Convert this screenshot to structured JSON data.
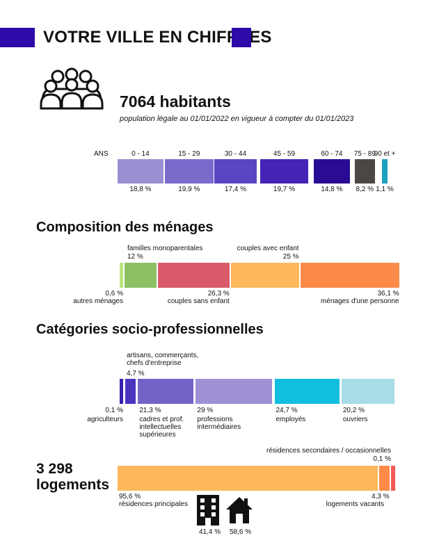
{
  "header": {
    "title": "VOTRE VILLE EN CHIFFRES",
    "accent": "#2e0aa8"
  },
  "population": {
    "icon": "people-group-icon",
    "count_label": "7064 habitants",
    "subtitle": "population légale au 01/01/2022 en vigueur à compter du 01/01/2023"
  },
  "chart_data": [
    {
      "type": "bar",
      "id": "ages",
      "title": "",
      "axis_label": "ANS",
      "categories": [
        "0 - 14",
        "15 - 29",
        "30 - 44",
        "45 - 59",
        "60 - 74",
        "75 - 89",
        "90 et +"
      ],
      "values": [
        18.8,
        19.9,
        17.4,
        19.7,
        14.8,
        8.2,
        1.1
      ],
      "value_labels": [
        "18,8 %",
        "19,9 %",
        "17,4 %",
        "19,7 %",
        "14,8 %",
        "8,2 %",
        "1,1 %"
      ],
      "colors": [
        "#9a8fd2",
        "#7a6acb",
        "#5a45c2",
        "#4324b4",
        "#2a0c94",
        "#4b4844",
        "#1da2bd"
      ]
    },
    {
      "type": "bar",
      "id": "menages",
      "title": "Composition des ménages",
      "categories": [
        "autres ménages",
        "familles monoparentales",
        "couples sans enfant",
        "couples avec enfant",
        "ménages d'une personne"
      ],
      "values": [
        0.6,
        12,
        26.3,
        25,
        36.1
      ],
      "value_labels": [
        "0,6 %",
        "12 %",
        "26,3 %",
        "25 %",
        "36,1 %"
      ],
      "colors": [
        "#b7e77c",
        "#8dbf63",
        "#d95b6a",
        "#fcb85a",
        "#fc8b4a"
      ]
    },
    {
      "type": "bar",
      "id": "csp",
      "title": "Catégories socio-professionnelles",
      "categories": [
        "agriculteurs",
        "artisans, commerçants, chefs d'entreprise",
        "cadres et prof. intellectuelles supérieures",
        "professions intermédiaires",
        "employés",
        "ouvriers"
      ],
      "values": [
        0.1,
        4.7,
        21.3,
        29,
        24.7,
        20.2
      ],
      "value_labels": [
        "0,1 %",
        "4,7 %",
        "21,3 %",
        "29 %",
        "24,7 %",
        "20,2 %"
      ],
      "colors": [
        "#3a1fb0",
        "#4a34bf",
        "#7363c6",
        "#9f90d6",
        "#11bedf",
        "#a8dce6"
      ]
    },
    {
      "type": "bar",
      "id": "logements",
      "title": "3 298 logements",
      "categories": [
        "résidences principales",
        "logements vacants",
        "résidences secondaires / occasionnelles"
      ],
      "values": [
        95.6,
        4.3,
        0.1
      ],
      "value_labels": [
        "95,6 %",
        "4,3 %",
        "0,1 %"
      ],
      "colors": [
        "#fcb85a",
        "#fc8b4a",
        "#f25a55"
      ],
      "housing_types": [
        {
          "icon": "apartment-building-icon",
          "value": 41.4,
          "label": "41,4 %"
        },
        {
          "icon": "house-icon",
          "value": 58.6,
          "label": "58,6 %"
        }
      ]
    }
  ],
  "logements": {
    "line1": "3 298",
    "line2": "logements"
  }
}
